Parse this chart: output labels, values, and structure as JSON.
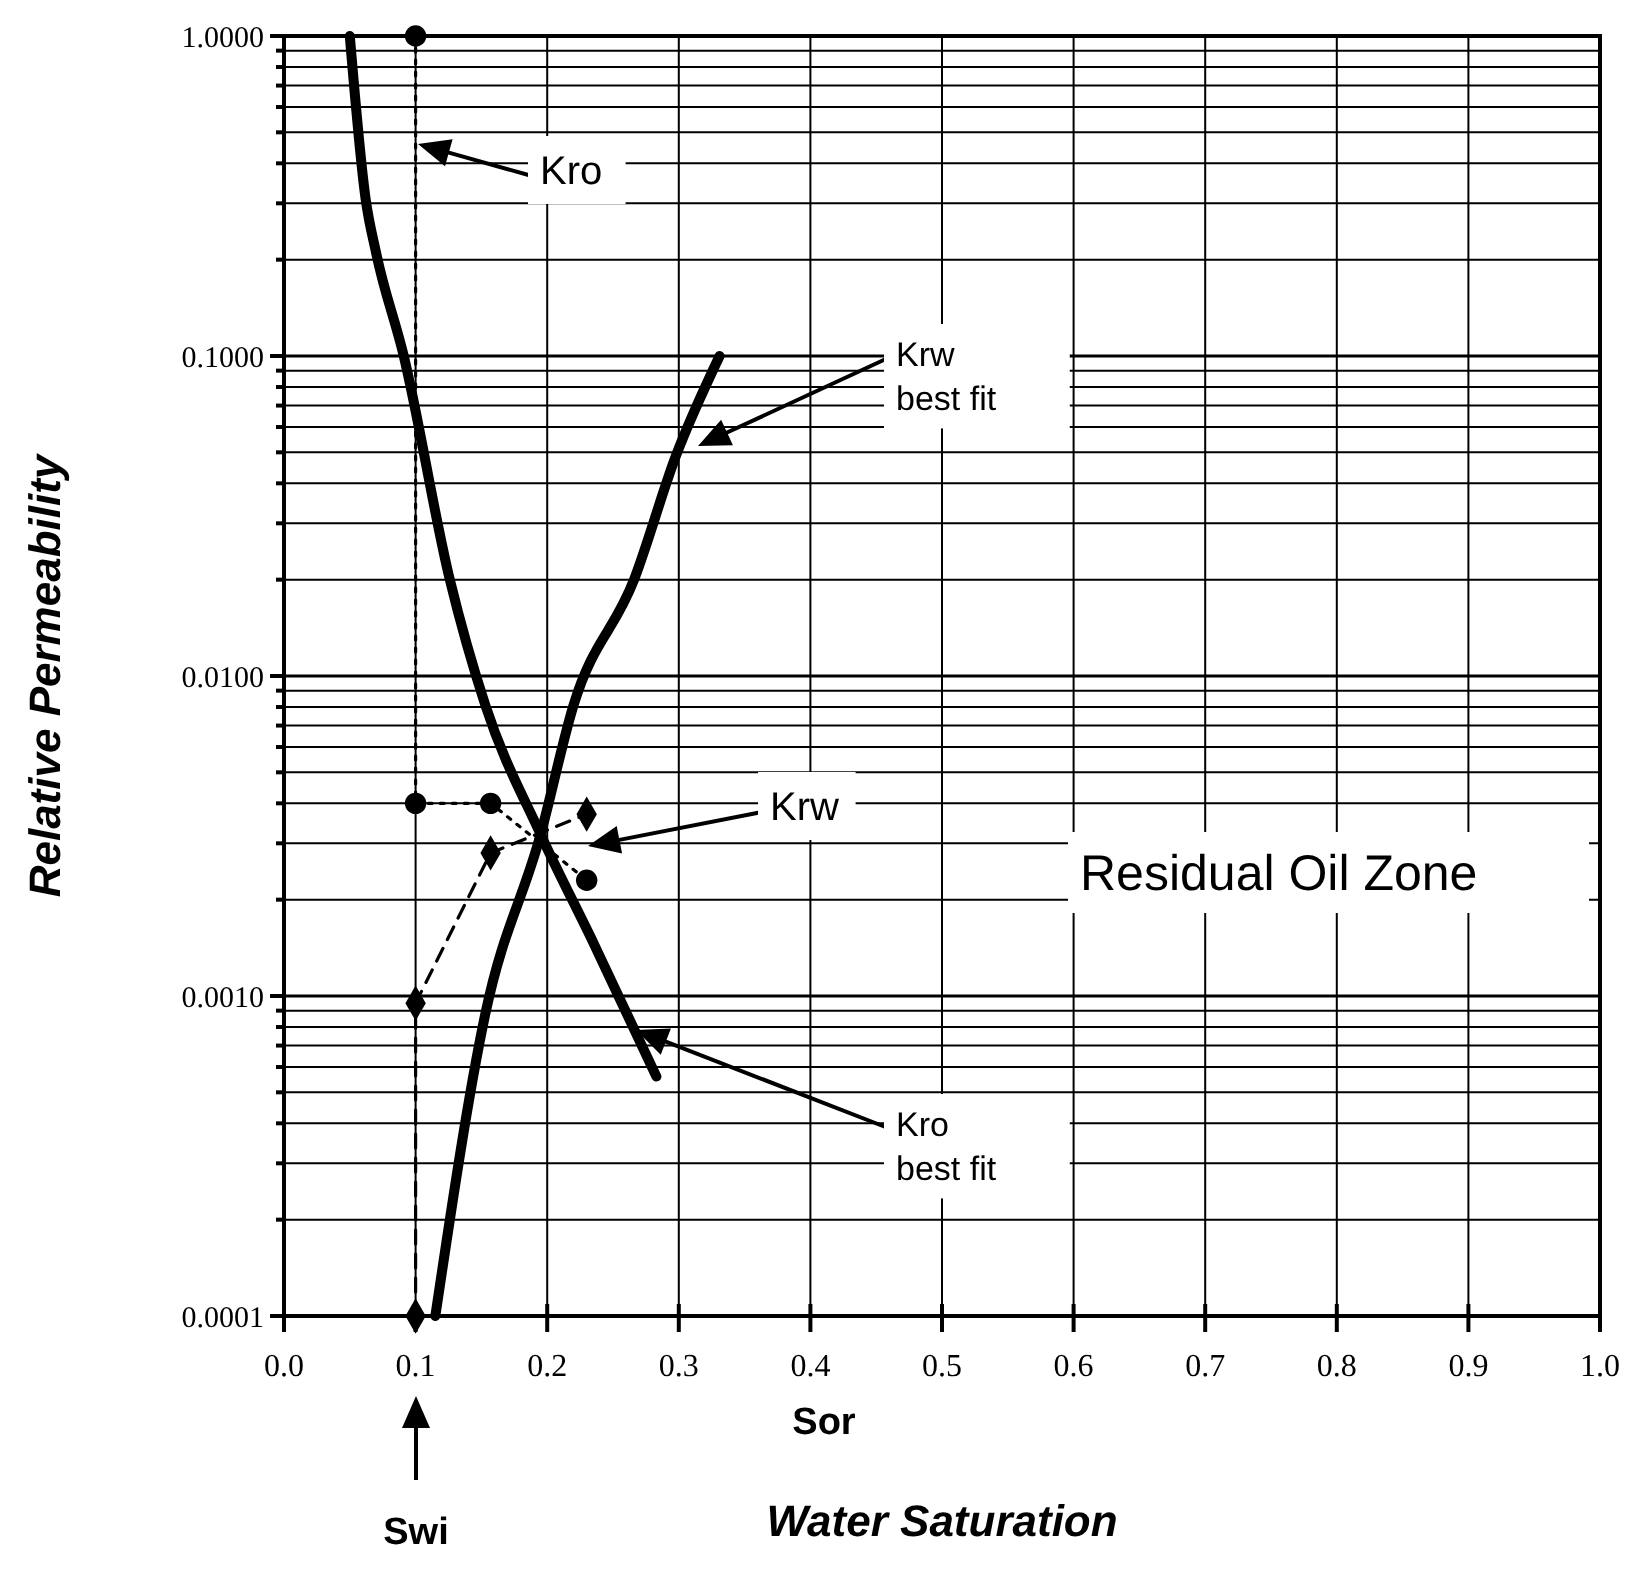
{
  "chart_data": {
    "type": "line",
    "xlabel": "Water Saturation",
    "ylabel": "Relative Permeability",
    "log": "y",
    "grid": true,
    "xlim": [
      0,
      1
    ],
    "xticks": [
      {
        "value": 0,
        "label": "0.0"
      },
      {
        "value": 0.1,
        "label": "0.1"
      },
      {
        "value": 0.2,
        "label": "0.2"
      },
      {
        "value": 0.3,
        "label": "0.3"
      },
      {
        "value": 0.4,
        "label": "0.4"
      },
      {
        "value": 0.5,
        "label": "0.5"
      },
      {
        "value": 0.6,
        "label": "0.6"
      },
      {
        "value": 0.7,
        "label": "0.7"
      },
      {
        "value": 0.8,
        "label": "0.8"
      },
      {
        "value": 0.9,
        "label": "0.9"
      },
      {
        "value": 1,
        "label": "1.0"
      }
    ],
    "ylim": [
      0.0001,
      1
    ],
    "yticks": [
      {
        "value": 0.0001,
        "label": "0.0001"
      },
      {
        "value": 0.0002,
        "label": null
      },
      {
        "value": 0.0003,
        "label": null
      },
      {
        "value": 0.0004,
        "label": null
      },
      {
        "value": 0.0005,
        "label": null
      },
      {
        "value": 0.0006,
        "label": null
      },
      {
        "value": 0.0007,
        "label": null
      },
      {
        "value": 0.0008,
        "label": null
      },
      {
        "value": 0.0009,
        "label": null
      },
      {
        "value": 0.001,
        "label": "0.0010"
      },
      {
        "value": 0.002,
        "label": null
      },
      {
        "value": 0.003,
        "label": null
      },
      {
        "value": 0.004,
        "label": null
      },
      {
        "value": 0.005,
        "label": null
      },
      {
        "value": 0.006,
        "label": null
      },
      {
        "value": 0.007,
        "label": null
      },
      {
        "value": 0.008,
        "label": null
      },
      {
        "value": 0.009,
        "label": null
      },
      {
        "value": 0.01,
        "label": "0.0100"
      },
      {
        "value": 0.02,
        "label": null
      },
      {
        "value": 0.03,
        "label": null
      },
      {
        "value": 0.04,
        "label": null
      },
      {
        "value": 0.05,
        "label": null
      },
      {
        "value": 0.06,
        "label": null
      },
      {
        "value": 0.07,
        "label": null
      },
      {
        "value": 0.08,
        "label": null
      },
      {
        "value": 0.09,
        "label": null
      },
      {
        "value": 0.1,
        "label": "0.1000"
      },
      {
        "value": 0.2,
        "label": null
      },
      {
        "value": 0.3,
        "label": null
      },
      {
        "value": 0.4,
        "label": null
      },
      {
        "value": 0.5,
        "label": null
      },
      {
        "value": 0.6,
        "label": null
      },
      {
        "value": 0.7,
        "label": null
      },
      {
        "value": 0.8,
        "label": null
      },
      {
        "value": 0.9,
        "label": null
      },
      {
        "value": 1,
        "label": "1.0000"
      }
    ],
    "series": [
      {
        "color": "#000000",
        "line_style": "solid",
        "marker": "none",
        "x": [
          0.05,
          0.062,
          0.07,
          0.091,
          0.126,
          0.153,
          0.195,
          0.236,
          0.283
        ],
        "values": [
          1,
          0.31,
          0.21,
          0.1,
          0.02,
          0.0081,
          0.0032,
          0.00144,
          0.00056
        ]
      },
      {
        "color": "#000000",
        "line_style": "solid",
        "marker": "none",
        "x": [
          0.115,
          0.153,
          0.195,
          0.22,
          0.266,
          0.298,
          0.331
        ],
        "values": [
          0.0001,
          0.00088,
          0.0032,
          0.0081,
          0.02,
          0.049,
          0.1
        ]
      },
      {
        "color": "#000000",
        "line_style": "dotted",
        "marker": "circle",
        "x": [
          0.1,
          0.1,
          0.157,
          0.23
        ],
        "values": [
          1,
          0.004,
          0.004,
          0.0023
        ]
      },
      {
        "color": "#000000",
        "line_style": "dashed",
        "marker": "diamond",
        "x": [
          0.1,
          0.1,
          0.157,
          0.23
        ],
        "values": [
          0.0001,
          0.00095,
          0.0028,
          0.0037
        ]
      }
    ],
    "annotations": [
      "Residual Oil Zone",
      "Sor",
      "Swi",
      "Kro",
      "Krw best fit",
      "Krw",
      "Kro best fit"
    ]
  }
}
